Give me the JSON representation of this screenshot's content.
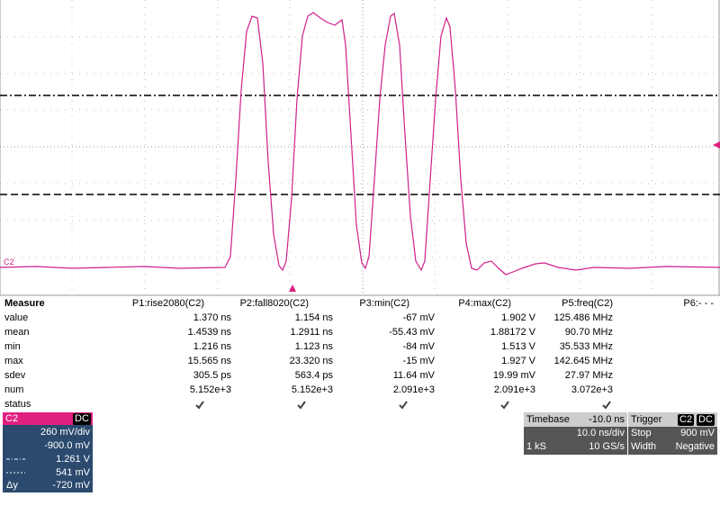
{
  "plot": {
    "channel_label": "C2"
  },
  "measure": {
    "title": "Measure",
    "columns": [
      "P1:rise2080(C2)",
      "P2:fall8020(C2)",
      "P3:min(C2)",
      "P4:max(C2)",
      "P5:freq(C2)",
      "P6:- - -"
    ],
    "rows": [
      {
        "label": "value",
        "cells": [
          "1.370 ns",
          "1.154 ns",
          "-67 mV",
          "1.902 V",
          "125.486 MHz"
        ]
      },
      {
        "label": "mean",
        "cells": [
          "1.4539 ns",
          "1.2911 ns",
          "-55.43 mV",
          "1.88172 V",
          "90.70 MHz"
        ]
      },
      {
        "label": "min",
        "cells": [
          "1.216 ns",
          "1.123 ns",
          "-84 mV",
          "1.513 V",
          "35.533 MHz"
        ]
      },
      {
        "label": "max",
        "cells": [
          "15.565 ns",
          "23.320 ns",
          "-15 mV",
          "1.927 V",
          "142.645 MHz"
        ]
      },
      {
        "label": "sdev",
        "cells": [
          "305.5 ps",
          "563.4 ps",
          "11.64 mV",
          "19.99 mV",
          "27.97 MHz"
        ]
      },
      {
        "label": "num",
        "cells": [
          "5.152e+3",
          "5.152e+3",
          "2.091e+3",
          "2.091e+3",
          "3.072e+3"
        ]
      }
    ],
    "status_label": "status"
  },
  "channel": {
    "name": "C2",
    "coupling": "DC",
    "scale": "260 mV/div",
    "offset": "-900.0 mV",
    "cursor1": "1.261 V",
    "cursor2": "541 mV",
    "delta_label": "Δy",
    "delta": "-720 mV"
  },
  "timebase": {
    "title": "Timebase",
    "delay": "-10.0 ns",
    "scale": "10.0 ns/div",
    "samples": "1 kS",
    "rate": "10 GS/s"
  },
  "trigger": {
    "title": "Trigger",
    "source": "C2",
    "coupling": "DC",
    "mode": "Stop",
    "level": "900 mV",
    "type": "Width",
    "polarity": "Negative"
  }
}
